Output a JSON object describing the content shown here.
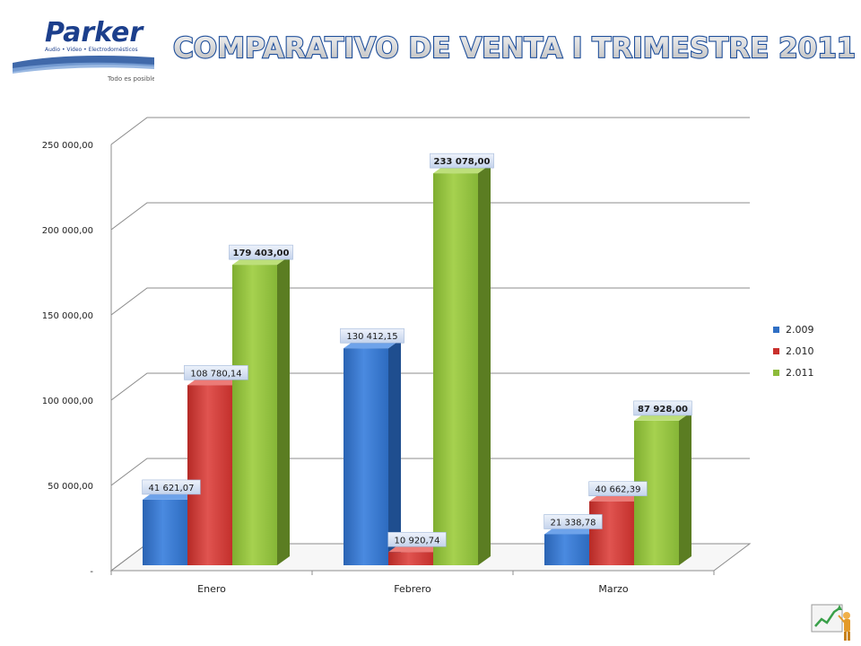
{
  "logo": {
    "brand": "Parker",
    "tagline": "Audio • Video • Electrodomésticos",
    "slogan": "Todo es posible"
  },
  "title": "COMPARATIVO DE VENTA I TRIMESTRE 2011",
  "chart_data": {
    "type": "bar",
    "title": "COMPARATIVO DE VENTA I TRIMESTRE 2011",
    "categories": [
      "Enero",
      "Febrero",
      "Marzo"
    ],
    "series": [
      {
        "name": "2.009",
        "color": "#2f6fc4",
        "values": [
          41621.07,
          130412.15,
          21338.78
        ],
        "labels": [
          "41 621,07",
          "130 412,15",
          "21 338,78"
        ]
      },
      {
        "name": "2.010",
        "color": "#c9302c",
        "values": [
          108780.14,
          10920.74,
          40662.39
        ],
        "labels": [
          "108 780,14",
          "10 920,74",
          "40 662,39"
        ]
      },
      {
        "name": "2.011",
        "color": "#8dbb3a",
        "values": [
          179403.0,
          233078.0,
          87928.0
        ],
        "labels": [
          "179 403,00",
          "233 078,00",
          "87 928,00"
        ]
      }
    ],
    "y_ticks": [
      {
        "value": 0,
        "label": "-"
      },
      {
        "value": 50000,
        "label": "50 000,00"
      },
      {
        "value": 100000,
        "label": "100 000,00"
      },
      {
        "value": 150000,
        "label": "150 000,00"
      },
      {
        "value": 200000,
        "label": "200 000,00"
      },
      {
        "value": 250000,
        "label": "250 000,00"
      }
    ],
    "ylim": [
      0,
      250000
    ],
    "grid": true,
    "legend_position": "right"
  }
}
